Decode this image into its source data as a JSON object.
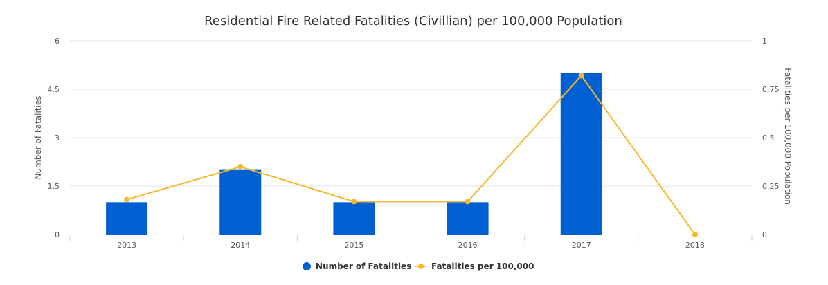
{
  "chart_data": {
    "type": "bar",
    "title": "Residential Fire Related Fatalities (Civillian) per 100,000 Population",
    "categories": [
      "2013",
      "2014",
      "2015",
      "2016",
      "2017",
      "2018"
    ],
    "series": [
      {
        "name": "Number of Fatalities",
        "type": "bar",
        "axis": "left",
        "color": "#0060d1",
        "values": [
          1,
          2,
          1,
          1,
          5,
          0
        ]
      },
      {
        "name": "Fatalities per 100,000",
        "type": "line",
        "axis": "right",
        "color": "#f5b82e",
        "values": [
          0.18,
          0.35,
          0.17,
          0.17,
          0.82,
          0
        ]
      }
    ],
    "y_left": {
      "label": "Number of Fatalities",
      "range": [
        0,
        6
      ],
      "ticks": [
        "0",
        "1.5",
        "3",
        "4.5",
        "6"
      ]
    },
    "y_right": {
      "label": "Fatalities per 100,000 Population",
      "range": [
        0,
        1
      ],
      "ticks": [
        "0",
        "0.25",
        "0.5",
        "0.75",
        "1"
      ]
    },
    "grid": true,
    "legend_position": "bottom-center"
  }
}
